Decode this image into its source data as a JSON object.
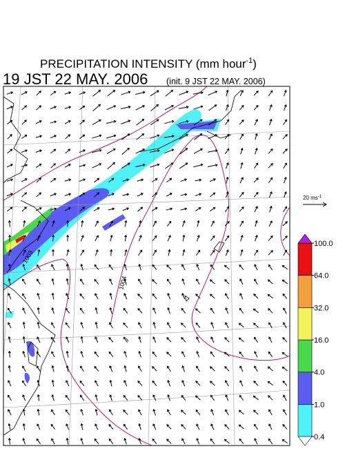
{
  "header": {
    "title": "PRECIPITATION INTENSITY (mm hour",
    "title_superscript": "-1",
    "title_end": ")",
    "valid_time": "19 JST 22 MAY. 2006",
    "init_time": "(init. 9 JST 22 MAY. 2006)"
  },
  "vector_scale": {
    "label": "20 ms",
    "label_superscript": "-1"
  },
  "contour_labels": [
    "1003",
    "1004"
  ],
  "colorbar": {
    "levels": [
      {
        "value": 0.4,
        "label": "0.4"
      },
      {
        "value": 1,
        "label": "1.0"
      },
      {
        "value": 4,
        "label": "4.0"
      },
      {
        "value": 16,
        "label": "16.0"
      },
      {
        "value": 32,
        "label": "32.0"
      },
      {
        "value": 64,
        "label": "64.0"
      },
      {
        "value": 100,
        "label": "100.0"
      }
    ],
    "colors": [
      "#4ff2f7",
      "#5a5cf2",
      "#4ad94a",
      "#f2f25a",
      "#f2a03c",
      "#e81010"
    ],
    "over_color": "#b020e0",
    "under_color": "#ffffff"
  }
}
